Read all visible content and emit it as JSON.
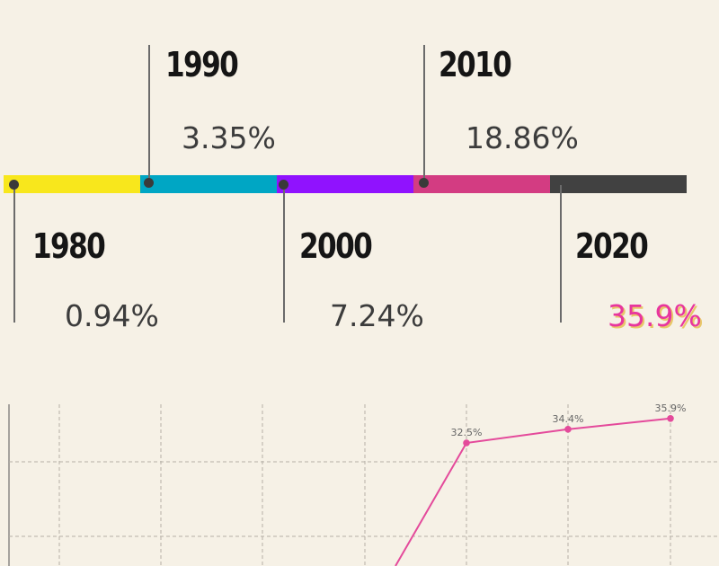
{
  "timeline": [
    {
      "year": "1980",
      "value": "0.94%",
      "color": "#f8e71c"
    },
    {
      "year": "1990",
      "value": "3.35%",
      "color": "#00a6c4"
    },
    {
      "year": "2000",
      "value": "7.24%",
      "color": "#9012fe"
    },
    {
      "year": "2010",
      "value": "18.86%",
      "color": "#d33c82"
    },
    {
      "year": "2020",
      "value": "35.9%",
      "color": "#414141"
    }
  ],
  "highlight_color": "#e8359e",
  "chart_data": {
    "type": "line",
    "series": [
      {
        "values": [
          null,
          null,
          null,
          null,
          32.5,
          34.4,
          35.9
        ],
        "labels": [
          "",
          "",
          "",
          "",
          "32.5%",
          "34.4%",
          "35.9%"
        ]
      }
    ],
    "line_color": "#e44a9b",
    "grid": true
  }
}
